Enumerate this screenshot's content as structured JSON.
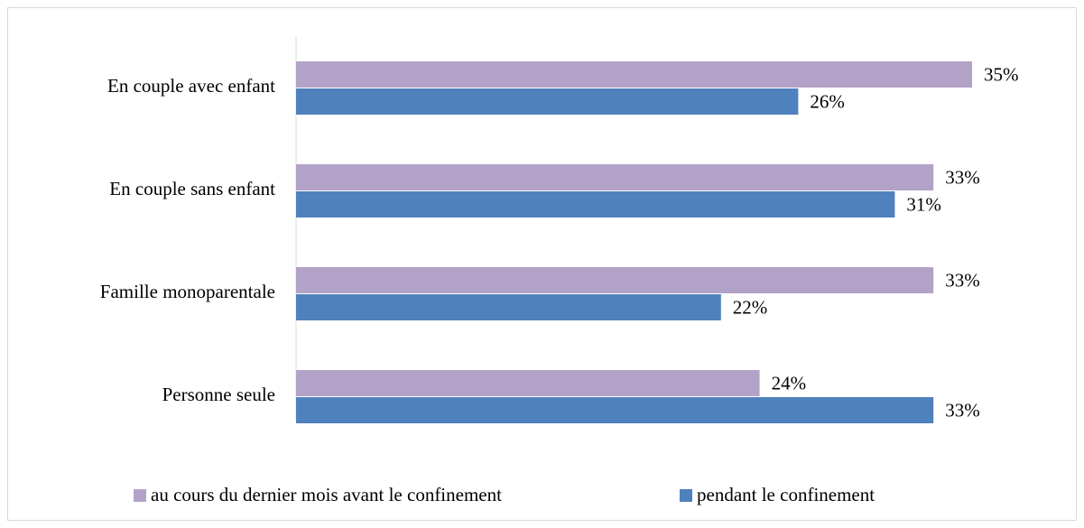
{
  "chart_data": {
    "type": "bar",
    "orientation": "horizontal",
    "categories": [
      "En couple avec enfant",
      "En couple sans enfant",
      "Famille monoparentale",
      "Personne seule"
    ],
    "series": [
      {
        "name": "au cours du dernier mois avant le confinement",
        "color": "#b3a2c7",
        "values": [
          35,
          33,
          33,
          24
        ],
        "value_labels": [
          "35%",
          "33%",
          "33%",
          "24%"
        ]
      },
      {
        "name": "pendant le confinement",
        "color": "#4f81bd",
        "values": [
          26,
          31,
          22,
          33
        ],
        "value_labels": [
          "26%",
          "31%",
          "22%",
          "33%"
        ]
      }
    ],
    "legend": "bottom"
  }
}
